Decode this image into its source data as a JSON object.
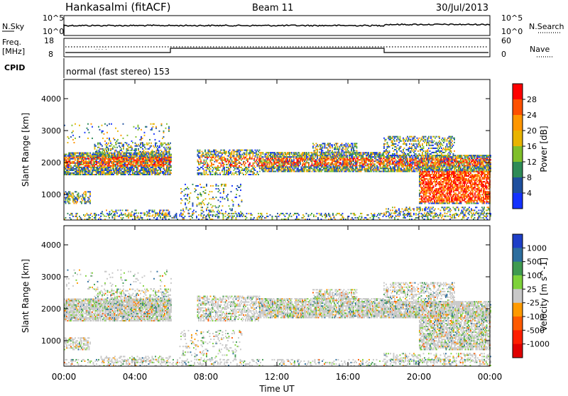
{
  "header": {
    "station": "Hankasalmi (fitACF)",
    "beam": "Beam 11",
    "date": "30/Jul/2013"
  },
  "top_panels": {
    "nsky_label": "N.Sky",
    "nsky_ticks": [
      "10^5",
      "10^0"
    ],
    "nsearch_label": "N.Search",
    "nsearch_ticks": [
      "10^5",
      "10^0"
    ],
    "freq_label_1": "Freq.",
    "freq_label_2": "[MHz]",
    "freq_ticks": [
      "18",
      "8"
    ],
    "nave_label": "Nave",
    "nave_ticks": [
      "60",
      "0"
    ],
    "cpid_label": "CPID",
    "cpid_text": "normal (fast stereo) 153"
  },
  "chart_data": [
    {
      "type": "heatmap",
      "name": "power-panel",
      "ylabel": "Slant Range [km]",
      "yticks": [
        1000,
        2000,
        3000,
        4000
      ],
      "ylim": [
        200,
        4600
      ],
      "xlim": [
        0,
        24
      ],
      "colorbar": {
        "label": "Power [dB]",
        "ticks": [
          "28",
          "24",
          "20",
          "16",
          "12",
          "8",
          "4"
        ],
        "colors": [
          "#ff0000",
          "#ff5000",
          "#ff9600",
          "#e8b400",
          "#7fbf2a",
          "#2e8b57",
          "#1e4f9e",
          "#1432ff"
        ]
      }
    },
    {
      "type": "heatmap",
      "name": "velocity-panel",
      "ylabel": "Slant Range [km]",
      "yticks": [
        1000,
        2000,
        3000,
        4000
      ],
      "ylim": [
        200,
        4600
      ],
      "xlim": [
        0,
        24
      ],
      "colorbar": {
        "label": "Velocity [m s^-1]",
        "ticks": [
          "1000",
          "500",
          "100",
          "25",
          "-25",
          "-100",
          "-500",
          "-1000"
        ],
        "colors": [
          "#1e3fc8",
          "#2d6e9e",
          "#3f9a50",
          "#7ed23a",
          "#c8c8c8",
          "#ff9a00",
          "#ff5a00",
          "#ff1e00",
          "#e00000"
        ]
      }
    }
  ],
  "xaxis": {
    "ticks": [
      "00:00",
      "04:00",
      "08:00",
      "12:00",
      "16:00",
      "20:00",
      "00:00"
    ],
    "label": "Time UT"
  }
}
